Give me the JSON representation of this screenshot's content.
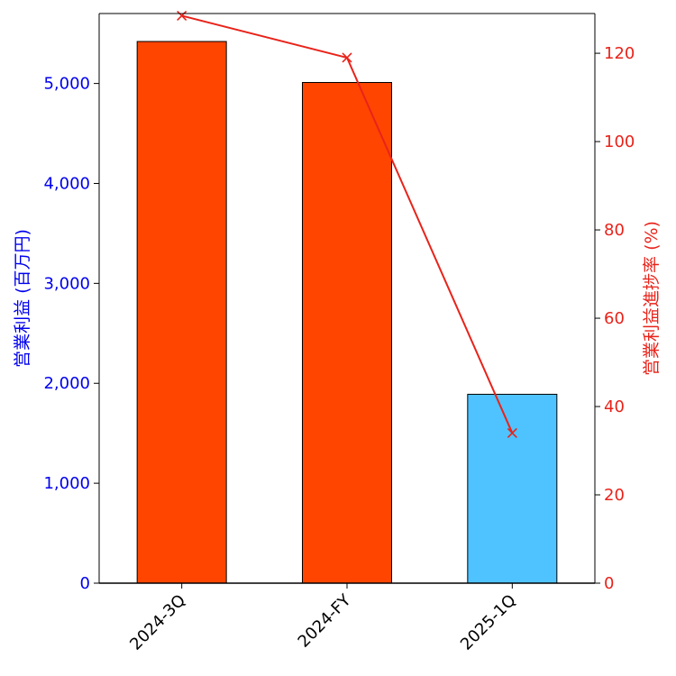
{
  "chart_data": {
    "type": "bar",
    "categories": [
      "2024-3Q",
      "2024-FY",
      "2025-1Q"
    ],
    "series": [
      {
        "name": "営業利益 (百万円)",
        "axis": "left",
        "kind": "bar",
        "values": [
          5420,
          5010,
          1890
        ],
        "colors": [
          "#ff4500",
          "#ff4500",
          "#4fc3ff"
        ]
      },
      {
        "name": "営業利益進捗率 (%)",
        "axis": "right",
        "kind": "line",
        "values": [
          128.5,
          119.0,
          34.0
        ],
        "color": "#e8231a",
        "marker": "x"
      }
    ],
    "ylabel": "営業利益 (百万円)",
    "ylabel_right": "営業利益進捗率 (%)",
    "ylim": [
      0,
      5700
    ],
    "ylim_right": [
      0,
      129
    ],
    "yticks": [
      0,
      1000,
      2000,
      3000,
      4000,
      5000
    ],
    "yticks_right": [
      0,
      20,
      40,
      60,
      80,
      100,
      120
    ],
    "ytick_labels": [
      "0",
      "1,000",
      "2,000",
      "3,000",
      "4,000",
      "5,000"
    ],
    "ytick_labels_right": [
      "0",
      "20",
      "40",
      "60",
      "80",
      "100",
      "120"
    ],
    "left_axis_color": "#0000ee",
    "right_axis_color": "#e8231a",
    "grid": false,
    "legend": "none"
  }
}
